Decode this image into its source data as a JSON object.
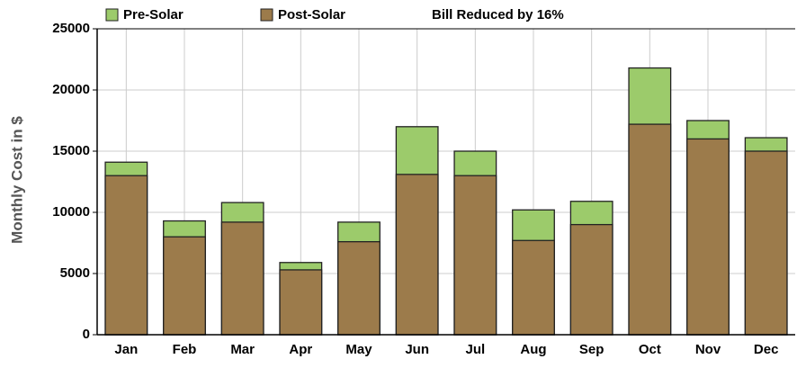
{
  "chart_data": {
    "type": "bar",
    "y_label": "Monthly Cost in $",
    "annotation": "Bill Reduced by 16%",
    "categories": [
      "Jan",
      "Feb",
      "Mar",
      "Apr",
      "May",
      "Jun",
      "Jul",
      "Aug",
      "Sep",
      "Oct",
      "Nov",
      "Dec"
    ],
    "series": [
      {
        "name": "Pre-Solar",
        "color": "#9ccb6b",
        "values": [
          14100,
          9300,
          10800,
          5900,
          9200,
          17000,
          15000,
          10200,
          10900,
          21800,
          17500,
          16100
        ]
      },
      {
        "name": "Post-Solar",
        "color": "#9c7b4b",
        "values": [
          13000,
          8000,
          9200,
          5300,
          7600,
          13100,
          13000,
          7700,
          9000,
          17200,
          16000,
          15000
        ]
      }
    ],
    "ylim": [
      0,
      25000
    ],
    "yticks": [
      0,
      5000,
      10000,
      15000,
      20000,
      25000
    ],
    "grid": true
  }
}
